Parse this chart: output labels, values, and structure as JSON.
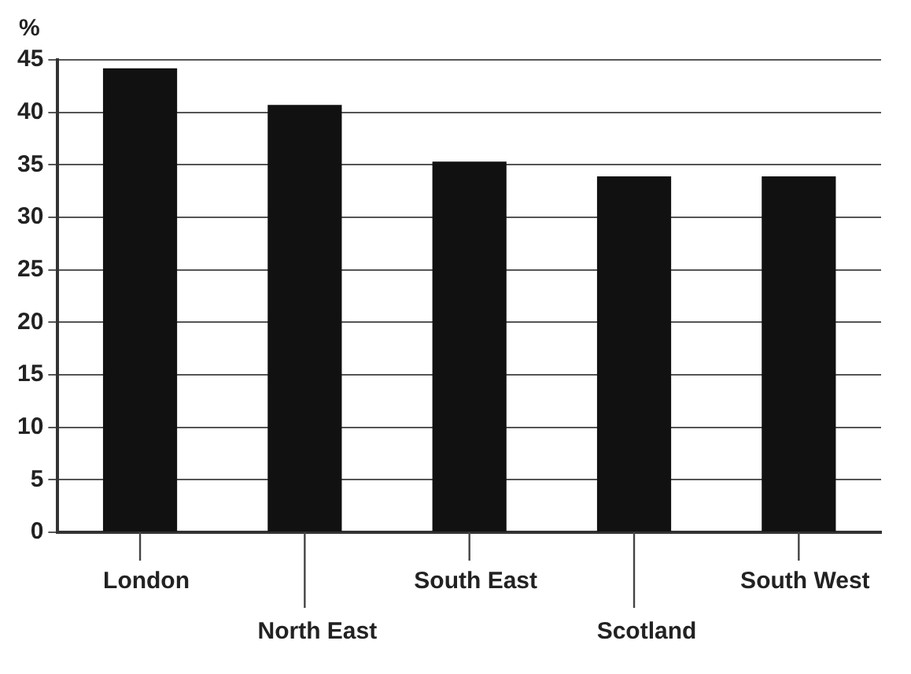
{
  "chart_data": {
    "type": "bar",
    "ylabel": "%",
    "categories": [
      "London",
      "North East",
      "South East",
      "Scotland",
      "South West"
    ],
    "values": [
      44.2,
      40.7,
      35.3,
      33.9,
      33.9
    ],
    "color": "#111111",
    "ylim": [
      0,
      45
    ],
    "yticks": [
      0,
      5,
      10,
      15,
      20,
      25,
      30,
      35,
      40,
      45
    ],
    "grid": "y",
    "legend": false
  }
}
